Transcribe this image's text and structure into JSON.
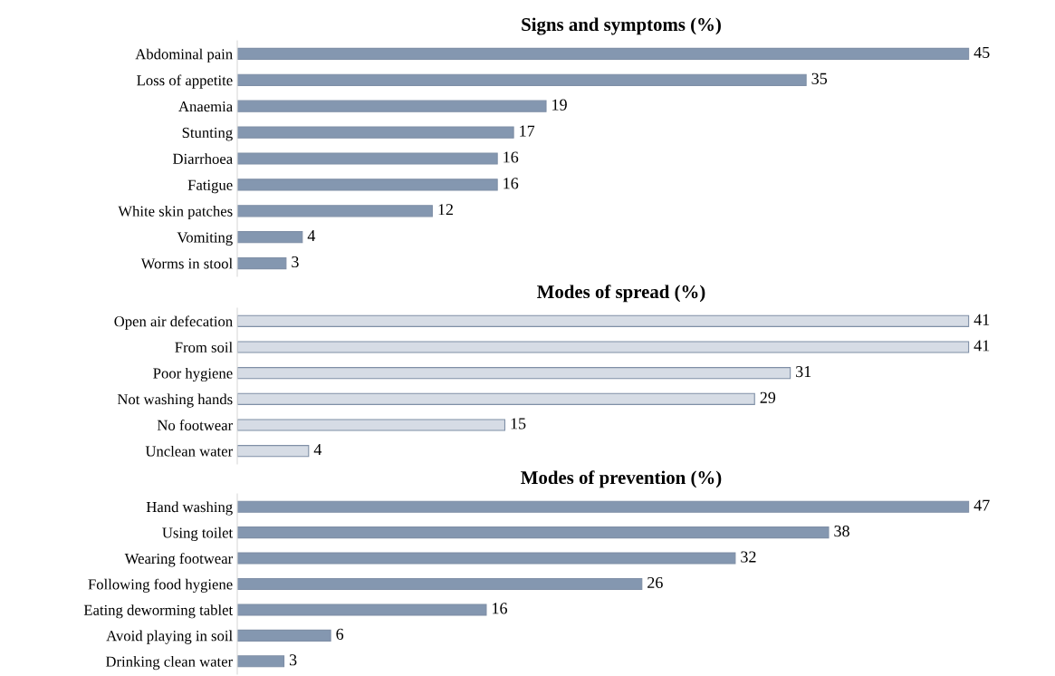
{
  "chart_data": [
    {
      "type": "bar",
      "orientation": "horizontal",
      "title": "Signs and symptoms (%)",
      "categories": [
        "Abdominal pain",
        "Loss of appetite",
        "Anaemia",
        "Stunting",
        "Diarrhoea",
        "Fatigue",
        "White skin patches",
        "Vomiting",
        "Worms in stool"
      ],
      "values": [
        45,
        35,
        19,
        17,
        16,
        16,
        12,
        4,
        3
      ],
      "color": "#8497b0",
      "tick_labels": "y",
      "data_labels": true,
      "grid": false,
      "legend": false
    },
    {
      "type": "bar",
      "orientation": "horizontal",
      "title": "Modes of spread (%)",
      "categories": [
        "Open air defecation",
        "From soil",
        "Poor hygiene",
        "Not washing hands",
        "No footwear",
        "Unclean water"
      ],
      "values": [
        41,
        41,
        31,
        29,
        15,
        4
      ],
      "color": "#d6dce5",
      "tick_labels": "y",
      "data_labels": true,
      "grid": false,
      "legend": false
    },
    {
      "type": "bar",
      "orientation": "horizontal",
      "title": "Modes of prevention (%)",
      "categories": [
        "Hand washing",
        "Using toilet",
        "Wearing footwear",
        "Following food hygiene",
        "Eating deworming tablet",
        "Avoid playing in soil",
        "Drinking clean water"
      ],
      "values": [
        47,
        38,
        32,
        26,
        16,
        6,
        3
      ],
      "color": "#8497b0",
      "tick_labels": "y",
      "data_labels": true,
      "grid": false,
      "legend": false
    }
  ]
}
